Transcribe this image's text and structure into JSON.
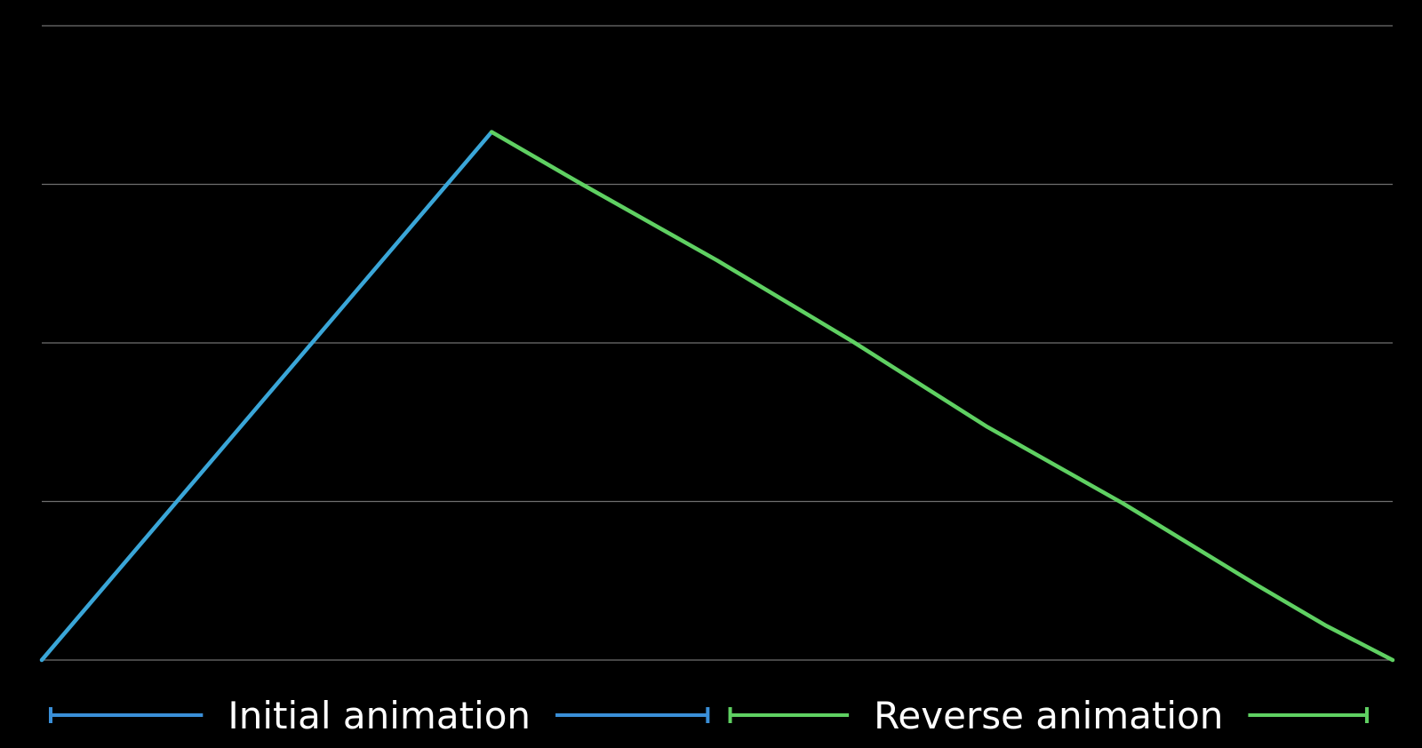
{
  "chart_data": {
    "type": "line",
    "title": "",
    "xlabel": "",
    "ylabel": "",
    "xlim": [
      0,
      1
    ],
    "ylim": [
      0,
      4
    ],
    "grid": true,
    "gridlines_y": [
      0,
      1,
      2,
      3,
      4
    ],
    "series": [
      {
        "color": "#3aa6d8",
        "points": [
          {
            "x": 0.0,
            "y": 0.0
          },
          {
            "x": 0.333,
            "y": 3.33
          }
        ]
      },
      {
        "color": "#5fd062",
        "points": [
          {
            "x": 0.333,
            "y": 3.33
          },
          {
            "x": 0.4,
            "y": 3.0
          },
          {
            "x": 0.5,
            "y": 2.52
          },
          {
            "x": 0.6,
            "y": 2.01
          },
          {
            "x": 0.7,
            "y": 1.47
          },
          {
            "x": 0.8,
            "y": 0.99
          },
          {
            "x": 0.9,
            "y": 0.47
          },
          {
            "x": 0.95,
            "y": 0.22
          },
          {
            "x": 1.0,
            "y": 0.0
          }
        ]
      }
    ],
    "brackets": [
      {
        "label": "Initial animation",
        "color": "#3a8fd8",
        "x_start": 0.0,
        "x_end": 0.493
      },
      {
        "label": "Reverse animation",
        "color": "#5fd062",
        "x_start": 0.503,
        "x_end": 1.0
      }
    ]
  },
  "colors": {
    "background": "#000000",
    "grid": "#6f6f6f",
    "label_text": "#ffffff"
  }
}
